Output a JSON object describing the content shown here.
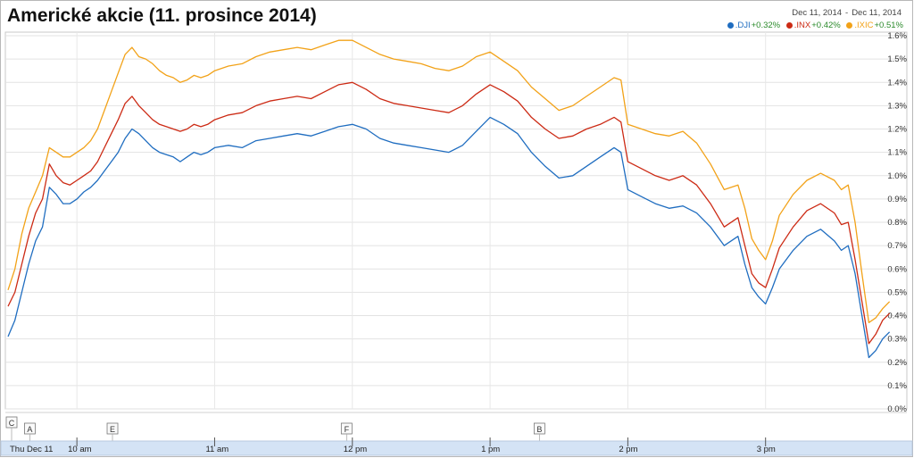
{
  "title": "Americké akcie (11. prosince 2014)",
  "date_range": {
    "from": "Dec 11, 2014",
    "separator": "-",
    "to": "Dec 11, 2014"
  },
  "legend": [
    {
      "symbol": ".DJI",
      "change": "+0.32%",
      "color": "#1f6dc0"
    },
    {
      "symbol": ".INX",
      "change": "+0.42%",
      "color": "#cc2a14"
    },
    {
      "symbol": ".IXIC",
      "change": "+0.51%",
      "color": "#f2a218"
    }
  ],
  "chart_data": {
    "type": "line",
    "title": "Americké akcie (11. prosince 2014)",
    "xlabel": "",
    "ylabel": "",
    "x_unit": "hour of day (decimal)",
    "xlim": [
      9.5,
      16.0
    ],
    "ylim": [
      0.0,
      1.6
    ],
    "y_ticks": [
      0.0,
      0.1,
      0.2,
      0.3,
      0.4,
      0.5,
      0.6,
      0.7,
      0.8,
      0.9,
      1.0,
      1.1,
      1.2,
      1.3,
      1.4,
      1.5,
      1.6
    ],
    "y_tick_labels": [
      "0.0%",
      "0.1%",
      "0.2%",
      "0.3%",
      "0.4%",
      "0.5%",
      "0.6%",
      "0.7%",
      "0.8%",
      "0.9%",
      "1.0%",
      "1.1%",
      "1.2%",
      "1.3%",
      "1.4%",
      "1.5%",
      "1.6%"
    ],
    "x_ticks": [
      {
        "x": 9.5,
        "label": "Thu Dec 11"
      },
      {
        "x": 10.0,
        "label": "10 am"
      },
      {
        "x": 11.0,
        "label": "11 am"
      },
      {
        "x": 12.0,
        "label": "12 pm"
      },
      {
        "x": 13.0,
        "label": "1 pm"
      },
      {
        "x": 14.0,
        "label": "2 pm"
      },
      {
        "x": 15.0,
        "label": "3 pm"
      }
    ],
    "grid": true,
    "legend_position": "top-right",
    "markers": [
      {
        "label": "C",
        "x": 9.5,
        "row": 0
      },
      {
        "label": "A",
        "x": 9.6,
        "row": 1
      },
      {
        "label": "E",
        "x": 10.2,
        "row": 1
      },
      {
        "label": "F",
        "x": 11.9,
        "row": 1
      },
      {
        "label": "B",
        "x": 13.3,
        "row": 1
      }
    ],
    "series": [
      {
        "name": ".DJI",
        "color": "#1f6dc0",
        "points": [
          [
            9.5,
            0.31
          ],
          [
            9.55,
            0.38
          ],
          [
            9.6,
            0.5
          ],
          [
            9.65,
            0.62
          ],
          [
            9.7,
            0.72
          ],
          [
            9.75,
            0.78
          ],
          [
            9.8,
            0.95
          ],
          [
            9.85,
            0.92
          ],
          [
            9.9,
            0.88
          ],
          [
            9.95,
            0.88
          ],
          [
            10.0,
            0.9
          ],
          [
            10.05,
            0.93
          ],
          [
            10.1,
            0.95
          ],
          [
            10.15,
            0.98
          ],
          [
            10.2,
            1.02
          ],
          [
            10.25,
            1.06
          ],
          [
            10.3,
            1.1
          ],
          [
            10.35,
            1.16
          ],
          [
            10.4,
            1.2
          ],
          [
            10.45,
            1.18
          ],
          [
            10.5,
            1.15
          ],
          [
            10.55,
            1.12
          ],
          [
            10.6,
            1.1
          ],
          [
            10.65,
            1.09
          ],
          [
            10.7,
            1.08
          ],
          [
            10.75,
            1.06
          ],
          [
            10.8,
            1.08
          ],
          [
            10.85,
            1.1
          ],
          [
            10.9,
            1.09
          ],
          [
            10.95,
            1.1
          ],
          [
            11.0,
            1.12
          ],
          [
            11.1,
            1.13
          ],
          [
            11.2,
            1.12
          ],
          [
            11.3,
            1.15
          ],
          [
            11.4,
            1.16
          ],
          [
            11.5,
            1.17
          ],
          [
            11.6,
            1.18
          ],
          [
            11.7,
            1.17
          ],
          [
            11.8,
            1.19
          ],
          [
            11.9,
            1.21
          ],
          [
            12.0,
            1.22
          ],
          [
            12.1,
            1.2
          ],
          [
            12.2,
            1.16
          ],
          [
            12.3,
            1.14
          ],
          [
            12.4,
            1.13
          ],
          [
            12.5,
            1.12
          ],
          [
            12.6,
            1.11
          ],
          [
            12.7,
            1.1
          ],
          [
            12.8,
            1.13
          ],
          [
            12.9,
            1.19
          ],
          [
            13.0,
            1.25
          ],
          [
            13.1,
            1.22
          ],
          [
            13.2,
            1.18
          ],
          [
            13.3,
            1.1
          ],
          [
            13.4,
            1.04
          ],
          [
            13.5,
            0.99
          ],
          [
            13.6,
            1.0
          ],
          [
            13.7,
            1.04
          ],
          [
            13.8,
            1.08
          ],
          [
            13.9,
            1.12
          ],
          [
            13.95,
            1.1
          ],
          [
            14.0,
            0.94
          ],
          [
            14.1,
            0.91
          ],
          [
            14.2,
            0.88
          ],
          [
            14.3,
            0.86
          ],
          [
            14.4,
            0.87
          ],
          [
            14.5,
            0.84
          ],
          [
            14.6,
            0.78
          ],
          [
            14.7,
            0.7
          ],
          [
            14.8,
            0.74
          ],
          [
            14.85,
            0.62
          ],
          [
            14.9,
            0.52
          ],
          [
            14.95,
            0.48
          ],
          [
            15.0,
            0.45
          ],
          [
            15.05,
            0.52
          ],
          [
            15.1,
            0.6
          ],
          [
            15.2,
            0.68
          ],
          [
            15.3,
            0.74
          ],
          [
            15.4,
            0.77
          ],
          [
            15.5,
            0.72
          ],
          [
            15.55,
            0.68
          ],
          [
            15.6,
            0.7
          ],
          [
            15.65,
            0.58
          ],
          [
            15.7,
            0.4
          ],
          [
            15.75,
            0.22
          ],
          [
            15.8,
            0.25
          ],
          [
            15.85,
            0.3
          ],
          [
            15.9,
            0.33
          ]
        ]
      },
      {
        "name": ".INX",
        "color": "#cc2a14",
        "points": [
          [
            9.5,
            0.44
          ],
          [
            9.55,
            0.5
          ],
          [
            9.6,
            0.62
          ],
          [
            9.65,
            0.74
          ],
          [
            9.7,
            0.84
          ],
          [
            9.75,
            0.9
          ],
          [
            9.8,
            1.05
          ],
          [
            9.85,
            1.0
          ],
          [
            9.9,
            0.97
          ],
          [
            9.95,
            0.96
          ],
          [
            10.0,
            0.98
          ],
          [
            10.05,
            1.0
          ],
          [
            10.1,
            1.02
          ],
          [
            10.15,
            1.06
          ],
          [
            10.2,
            1.12
          ],
          [
            10.25,
            1.18
          ],
          [
            10.3,
            1.24
          ],
          [
            10.35,
            1.31
          ],
          [
            10.4,
            1.34
          ],
          [
            10.45,
            1.3
          ],
          [
            10.5,
            1.27
          ],
          [
            10.55,
            1.24
          ],
          [
            10.6,
            1.22
          ],
          [
            10.65,
            1.21
          ],
          [
            10.7,
            1.2
          ],
          [
            10.75,
            1.19
          ],
          [
            10.8,
            1.2
          ],
          [
            10.85,
            1.22
          ],
          [
            10.9,
            1.21
          ],
          [
            10.95,
            1.22
          ],
          [
            11.0,
            1.24
          ],
          [
            11.1,
            1.26
          ],
          [
            11.2,
            1.27
          ],
          [
            11.3,
            1.3
          ],
          [
            11.4,
            1.32
          ],
          [
            11.5,
            1.33
          ],
          [
            11.6,
            1.34
          ],
          [
            11.7,
            1.33
          ],
          [
            11.8,
            1.36
          ],
          [
            11.9,
            1.39
          ],
          [
            12.0,
            1.4
          ],
          [
            12.1,
            1.37
          ],
          [
            12.2,
            1.33
          ],
          [
            12.3,
            1.31
          ],
          [
            12.4,
            1.3
          ],
          [
            12.5,
            1.29
          ],
          [
            12.6,
            1.28
          ],
          [
            12.7,
            1.27
          ],
          [
            12.8,
            1.3
          ],
          [
            12.9,
            1.35
          ],
          [
            13.0,
            1.39
          ],
          [
            13.1,
            1.36
          ],
          [
            13.2,
            1.32
          ],
          [
            13.3,
            1.25
          ],
          [
            13.4,
            1.2
          ],
          [
            13.5,
            1.16
          ],
          [
            13.6,
            1.17
          ],
          [
            13.7,
            1.2
          ],
          [
            13.8,
            1.22
          ],
          [
            13.9,
            1.25
          ],
          [
            13.95,
            1.23
          ],
          [
            14.0,
            1.06
          ],
          [
            14.1,
            1.03
          ],
          [
            14.2,
            1.0
          ],
          [
            14.3,
            0.98
          ],
          [
            14.4,
            1.0
          ],
          [
            14.5,
            0.96
          ],
          [
            14.6,
            0.88
          ],
          [
            14.7,
            0.78
          ],
          [
            14.8,
            0.82
          ],
          [
            14.85,
            0.7
          ],
          [
            14.9,
            0.58
          ],
          [
            14.95,
            0.54
          ],
          [
            15.0,
            0.52
          ],
          [
            15.05,
            0.6
          ],
          [
            15.1,
            0.69
          ],
          [
            15.2,
            0.78
          ],
          [
            15.3,
            0.85
          ],
          [
            15.4,
            0.88
          ],
          [
            15.5,
            0.84
          ],
          [
            15.55,
            0.79
          ],
          [
            15.6,
            0.8
          ],
          [
            15.65,
            0.64
          ],
          [
            15.7,
            0.46
          ],
          [
            15.75,
            0.28
          ],
          [
            15.8,
            0.32
          ],
          [
            15.85,
            0.38
          ],
          [
            15.9,
            0.41
          ]
        ]
      },
      {
        "name": ".IXIC",
        "color": "#f2a218",
        "points": [
          [
            9.5,
            0.51
          ],
          [
            9.55,
            0.6
          ],
          [
            9.6,
            0.75
          ],
          [
            9.65,
            0.86
          ],
          [
            9.7,
            0.93
          ],
          [
            9.75,
            1.0
          ],
          [
            9.8,
            1.12
          ],
          [
            9.85,
            1.1
          ],
          [
            9.9,
            1.08
          ],
          [
            9.95,
            1.08
          ],
          [
            10.0,
            1.1
          ],
          [
            10.05,
            1.12
          ],
          [
            10.1,
            1.15
          ],
          [
            10.15,
            1.2
          ],
          [
            10.2,
            1.28
          ],
          [
            10.25,
            1.36
          ],
          [
            10.3,
            1.44
          ],
          [
            10.35,
            1.52
          ],
          [
            10.4,
            1.55
          ],
          [
            10.45,
            1.51
          ],
          [
            10.5,
            1.5
          ],
          [
            10.55,
            1.48
          ],
          [
            10.6,
            1.45
          ],
          [
            10.65,
            1.43
          ],
          [
            10.7,
            1.42
          ],
          [
            10.75,
            1.4
          ],
          [
            10.8,
            1.41
          ],
          [
            10.85,
            1.43
          ],
          [
            10.9,
            1.42
          ],
          [
            10.95,
            1.43
          ],
          [
            11.0,
            1.45
          ],
          [
            11.1,
            1.47
          ],
          [
            11.2,
            1.48
          ],
          [
            11.3,
            1.51
          ],
          [
            11.4,
            1.53
          ],
          [
            11.5,
            1.54
          ],
          [
            11.6,
            1.55
          ],
          [
            11.7,
            1.54
          ],
          [
            11.8,
            1.56
          ],
          [
            11.9,
            1.58
          ],
          [
            12.0,
            1.58
          ],
          [
            12.1,
            1.55
          ],
          [
            12.2,
            1.52
          ],
          [
            12.3,
            1.5
          ],
          [
            12.4,
            1.49
          ],
          [
            12.5,
            1.48
          ],
          [
            12.6,
            1.46
          ],
          [
            12.7,
            1.45
          ],
          [
            12.8,
            1.47
          ],
          [
            12.9,
            1.51
          ],
          [
            13.0,
            1.53
          ],
          [
            13.1,
            1.49
          ],
          [
            13.2,
            1.45
          ],
          [
            13.3,
            1.38
          ],
          [
            13.4,
            1.33
          ],
          [
            13.5,
            1.28
          ],
          [
            13.6,
            1.3
          ],
          [
            13.7,
            1.34
          ],
          [
            13.8,
            1.38
          ],
          [
            13.9,
            1.42
          ],
          [
            13.95,
            1.41
          ],
          [
            14.0,
            1.22
          ],
          [
            14.1,
            1.2
          ],
          [
            14.2,
            1.18
          ],
          [
            14.3,
            1.17
          ],
          [
            14.4,
            1.19
          ],
          [
            14.5,
            1.14
          ],
          [
            14.6,
            1.05
          ],
          [
            14.7,
            0.94
          ],
          [
            14.8,
            0.96
          ],
          [
            14.85,
            0.86
          ],
          [
            14.9,
            0.73
          ],
          [
            14.95,
            0.68
          ],
          [
            15.0,
            0.64
          ],
          [
            15.05,
            0.72
          ],
          [
            15.1,
            0.83
          ],
          [
            15.2,
            0.92
          ],
          [
            15.3,
            0.98
          ],
          [
            15.4,
            1.01
          ],
          [
            15.5,
            0.98
          ],
          [
            15.55,
            0.94
          ],
          [
            15.6,
            0.96
          ],
          [
            15.65,
            0.8
          ],
          [
            15.7,
            0.58
          ],
          [
            15.75,
            0.37
          ],
          [
            15.8,
            0.39
          ],
          [
            15.85,
            0.43
          ],
          [
            15.9,
            0.46
          ]
        ]
      }
    ]
  }
}
